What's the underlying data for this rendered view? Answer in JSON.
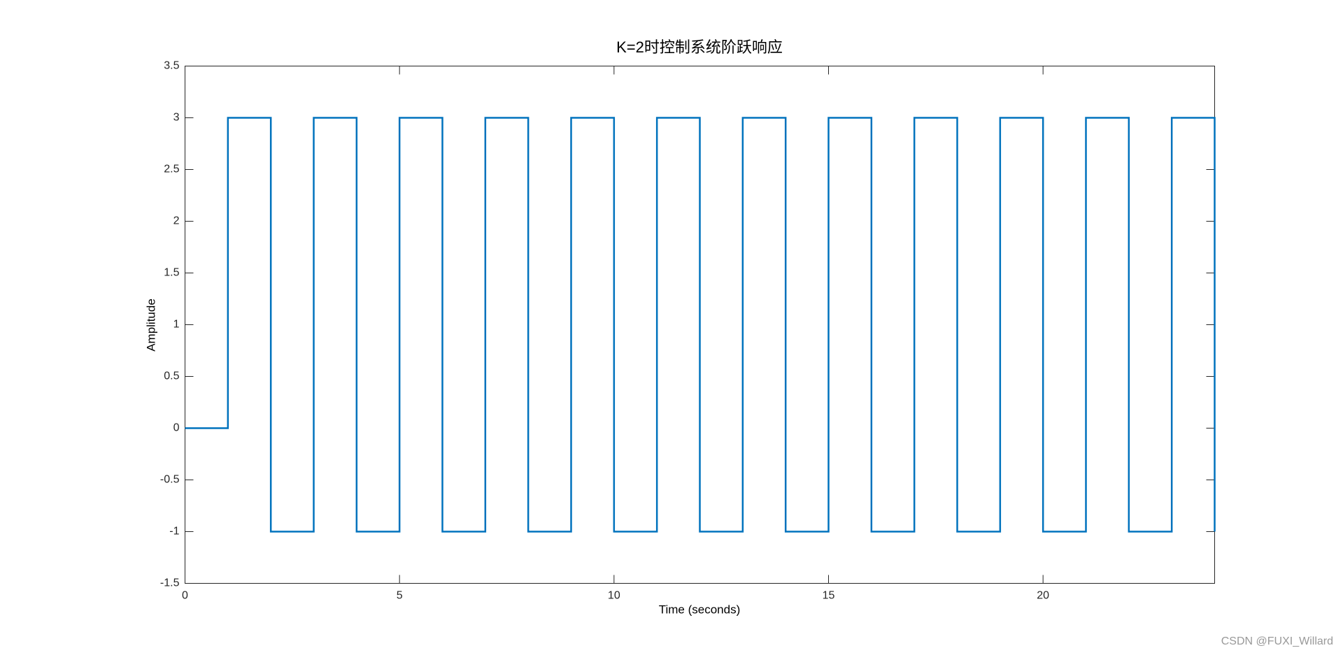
{
  "chart_data": {
    "type": "line",
    "title": "K=2时控制系统阶跃响应",
    "x_label": "Time (seconds)",
    "y_label": "Amplitude",
    "x": [
      0,
      1,
      1,
      2,
      2,
      3,
      3,
      4,
      4,
      5,
      5,
      6,
      6,
      7,
      7,
      8,
      8,
      9,
      9,
      10,
      10,
      11,
      11,
      12,
      12,
      13,
      13,
      14,
      14,
      15,
      15,
      16,
      16,
      17,
      17,
      18,
      18,
      19,
      19,
      20,
      20,
      21,
      21,
      22,
      22,
      23,
      23,
      24,
      24
    ],
    "series": [
      {
        "color": "#0072bd",
        "values": [
          0,
          0,
          3,
          3,
          -1,
          -1,
          3,
          3,
          -1,
          -1,
          3,
          3,
          -1,
          -1,
          3,
          3,
          -1,
          -1,
          3,
          3,
          -1,
          -1,
          3,
          3,
          -1,
          -1,
          3,
          3,
          -1,
          -1,
          3,
          3,
          -1,
          -1,
          3,
          3,
          -1,
          -1,
          3,
          3,
          -1,
          -1,
          3,
          3,
          -1,
          -1,
          3,
          3,
          -1
        ]
      }
    ],
    "xlim": [
      0,
      24
    ],
    "xticks": [
      0,
      5,
      10,
      15,
      20
    ],
    "ylim": [
      -1.5,
      3.5
    ],
    "yticks": [
      -1.5,
      -1,
      -0.5,
      0,
      0.5,
      1,
      1.5,
      2,
      2.5,
      3,
      3.5
    ],
    "grid": false
  },
  "watermark": "CSDN @FUXI_Willard"
}
